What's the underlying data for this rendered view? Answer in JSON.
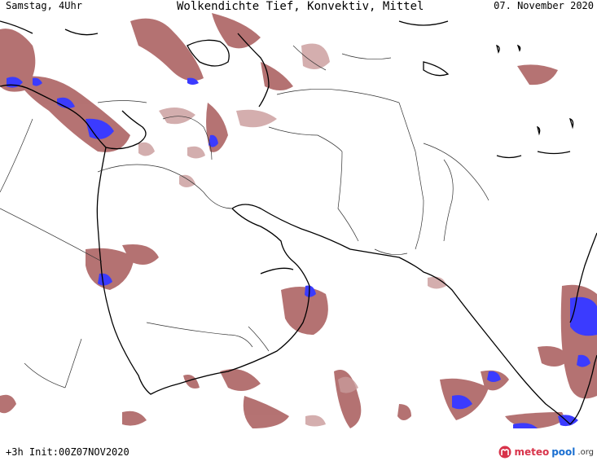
{
  "header": {
    "left": "Samstag, 4Uhr",
    "title": "Wolkendichte   Tief, Konvektiv, Mittel",
    "date": "07. November 2020"
  },
  "footer": {
    "forecast_info": "+3h  Init:00Z07NOV2020"
  },
  "logo": {
    "part1": "meteo",
    "part2": "pool",
    "suffix": ".org"
  },
  "colors": {
    "cloud_low": "#c99a9a",
    "cloud_mid": "#9e4a4a",
    "cloud_dense": "#8c2f2f",
    "convective": "#3b3bff",
    "coastline": "#000000",
    "borders": "#333333"
  }
}
